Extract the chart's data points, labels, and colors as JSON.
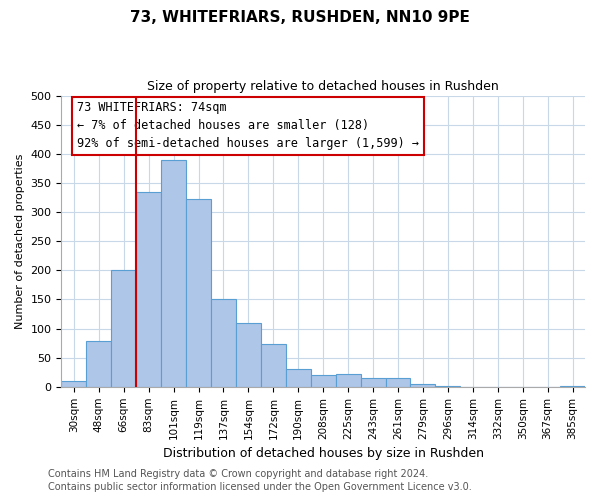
{
  "title": "73, WHITEFRIARS, RUSHDEN, NN10 9PE",
  "subtitle": "Size of property relative to detached houses in Rushden",
  "xlabel": "Distribution of detached houses by size in Rushden",
  "ylabel": "Number of detached properties",
  "bin_labels": [
    "30sqm",
    "48sqm",
    "66sqm",
    "83sqm",
    "101sqm",
    "119sqm",
    "137sqm",
    "154sqm",
    "172sqm",
    "190sqm",
    "208sqm",
    "225sqm",
    "243sqm",
    "261sqm",
    "279sqm",
    "296sqm",
    "314sqm",
    "332sqm",
    "350sqm",
    "367sqm",
    "385sqm"
  ],
  "bin_values": [
    10,
    78,
    200,
    335,
    390,
    323,
    150,
    110,
    73,
    30,
    20,
    22,
    15,
    15,
    5,
    2,
    0,
    0,
    0,
    0,
    2
  ],
  "bar_color": "#aec6e8",
  "bar_edge_color": "#5a9fd4",
  "ylim": [
    0,
    500
  ],
  "yticks": [
    0,
    50,
    100,
    150,
    200,
    250,
    300,
    350,
    400,
    450,
    500
  ],
  "vline_color": "#cc0000",
  "annotation_title": "73 WHITEFRIARS: 74sqm",
  "annotation_line1": "← 7% of detached houses are smaller (128)",
  "annotation_line2": "92% of semi-detached houses are larger (1,599) →",
  "annotation_box_color": "#ffffff",
  "annotation_box_edge": "#cc0000",
  "footer1": "Contains HM Land Registry data © Crown copyright and database right 2024.",
  "footer2": "Contains public sector information licensed under the Open Government Licence v3.0.",
  "bg_color": "#ffffff",
  "grid_color": "#c8d8e8",
  "title_fontsize": 11,
  "subtitle_fontsize": 9,
  "ylabel_fontsize": 8,
  "xlabel_fontsize": 9,
  "tick_fontsize": 8,
  "xtick_fontsize": 7.5,
  "footer_fontsize": 7,
  "annot_fontsize": 8.5
}
